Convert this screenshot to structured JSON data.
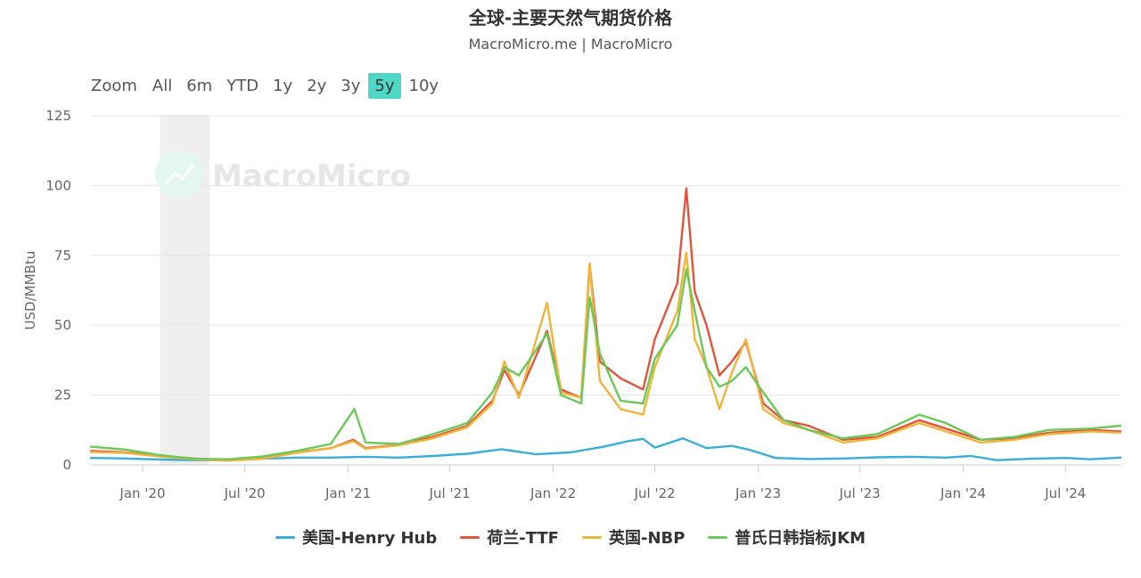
{
  "header": {
    "title": "全球-主要天然气期货价格",
    "subtitle": "MacroMicro.me | MacroMicro"
  },
  "zoom": {
    "label": "Zoom",
    "buttons": [
      "All",
      "6m",
      "YTD",
      "1y",
      "2y",
      "3y",
      "5y",
      "10y"
    ],
    "active": "5y"
  },
  "watermark": {
    "text": "MacroMicro",
    "icon": "chart-line-icon"
  },
  "chart_data": {
    "type": "line",
    "ylabel": "USD/MMBtu",
    "xlabel": "",
    "ylim": [
      0,
      125
    ],
    "yticks": [
      0,
      25,
      50,
      75,
      100,
      125
    ],
    "xlim": [
      "2019-10-01",
      "2024-10-07"
    ],
    "xticks": [
      {
        "date": "2020-01-01",
        "label": "Jan '20"
      },
      {
        "date": "2020-07-01",
        "label": "Jul '20"
      },
      {
        "date": "2021-01-01",
        "label": "Jan '21"
      },
      {
        "date": "2021-07-01",
        "label": "Jul '21"
      },
      {
        "date": "2022-01-01",
        "label": "Jan '22"
      },
      {
        "date": "2022-07-01",
        "label": "Jul '22"
      },
      {
        "date": "2023-01-01",
        "label": "Jan '23"
      },
      {
        "date": "2023-07-01",
        "label": "Jul '23"
      },
      {
        "date": "2024-01-01",
        "label": "Jan '24"
      },
      {
        "date": "2024-07-01",
        "label": "Jul '24"
      }
    ],
    "shaded_periods": [
      {
        "start": "2020-02-01",
        "end": "2020-04-30"
      }
    ],
    "grid": true,
    "legend_position": "bottom",
    "series": [
      {
        "name": "美国-Henry Hub",
        "color": "#3aaed8",
        "points": [
          [
            "2019-10-01",
            2.5
          ],
          [
            "2019-12-01",
            2.3
          ],
          [
            "2020-02-01",
            1.9
          ],
          [
            "2020-04-01",
            1.7
          ],
          [
            "2020-06-01",
            1.7
          ],
          [
            "2020-08-01",
            2.2
          ],
          [
            "2020-10-01",
            2.6
          ],
          [
            "2020-12-01",
            2.6
          ],
          [
            "2021-02-01",
            2.9
          ],
          [
            "2021-04-01",
            2.6
          ],
          [
            "2021-06-01",
            3.2
          ],
          [
            "2021-08-01",
            4.0
          ],
          [
            "2021-10-01",
            5.6
          ],
          [
            "2021-12-01",
            3.8
          ],
          [
            "2022-02-01",
            4.5
          ],
          [
            "2022-04-01",
            6.5
          ],
          [
            "2022-05-15",
            8.5
          ],
          [
            "2022-06-10",
            9.3
          ],
          [
            "2022-07-01",
            6.2
          ],
          [
            "2022-08-20",
            9.5
          ],
          [
            "2022-10-01",
            6.0
          ],
          [
            "2022-11-15",
            6.8
          ],
          [
            "2022-12-15",
            5.5
          ],
          [
            "2023-02-01",
            2.5
          ],
          [
            "2023-04-01",
            2.1
          ],
          [
            "2023-06-01",
            2.3
          ],
          [
            "2023-08-01",
            2.7
          ],
          [
            "2023-10-01",
            2.9
          ],
          [
            "2023-12-01",
            2.6
          ],
          [
            "2024-01-15",
            3.2
          ],
          [
            "2024-03-01",
            1.7
          ],
          [
            "2024-05-01",
            2.2
          ],
          [
            "2024-07-01",
            2.5
          ],
          [
            "2024-08-15",
            2.0
          ],
          [
            "2024-10-07",
            2.6
          ]
        ]
      },
      {
        "name": "荷兰-TTF",
        "color": "#e2553c",
        "points": [
          [
            "2019-10-01",
            5.0
          ],
          [
            "2019-12-01",
            4.5
          ],
          [
            "2020-02-01",
            3.3
          ],
          [
            "2020-04-01",
            2.3
          ],
          [
            "2020-06-01",
            1.8
          ],
          [
            "2020-08-01",
            2.5
          ],
          [
            "2020-10-01",
            4.5
          ],
          [
            "2020-12-01",
            6.0
          ],
          [
            "2021-01-10",
            9.0
          ],
          [
            "2021-02-01",
            6.0
          ],
          [
            "2021-04-01",
            7.2
          ],
          [
            "2021-06-01",
            10.0
          ],
          [
            "2021-08-01",
            14.0
          ],
          [
            "2021-09-15",
            23.0
          ],
          [
            "2021-10-06",
            34.0
          ],
          [
            "2021-11-01",
            25.0
          ],
          [
            "2021-12-21",
            48.0
          ],
          [
            "2022-01-15",
            27.0
          ],
          [
            "2022-02-20",
            24.0
          ],
          [
            "2022-03-07",
            72.0
          ],
          [
            "2022-03-25",
            37.0
          ],
          [
            "2022-05-01",
            31.0
          ],
          [
            "2022-06-10",
            27.0
          ],
          [
            "2022-07-01",
            45.0
          ],
          [
            "2022-08-10",
            65.0
          ],
          [
            "2022-08-26",
            99.0
          ],
          [
            "2022-09-10",
            62.0
          ],
          [
            "2022-10-01",
            50.0
          ],
          [
            "2022-10-24",
            32.0
          ],
          [
            "2022-11-15",
            37.0
          ],
          [
            "2022-12-10",
            44.0
          ],
          [
            "2023-01-10",
            22.0
          ],
          [
            "2023-02-15",
            16.0
          ],
          [
            "2023-04-01",
            14.0
          ],
          [
            "2023-06-01",
            9.0
          ],
          [
            "2023-08-01",
            10.0
          ],
          [
            "2023-10-15",
            16.0
          ],
          [
            "2023-12-01",
            13.0
          ],
          [
            "2024-02-01",
            9.0
          ],
          [
            "2024-04-01",
            9.5
          ],
          [
            "2024-06-01",
            11.5
          ],
          [
            "2024-08-15",
            12.5
          ],
          [
            "2024-10-07",
            12.0
          ]
        ]
      },
      {
        "name": "英国-NBP",
        "color": "#f1b43a",
        "points": [
          [
            "2019-10-01",
            4.6
          ],
          [
            "2019-12-01",
            4.3
          ],
          [
            "2020-02-01",
            3.0
          ],
          [
            "2020-04-01",
            2.0
          ],
          [
            "2020-06-01",
            1.5
          ],
          [
            "2020-08-01",
            2.2
          ],
          [
            "2020-10-01",
            4.3
          ],
          [
            "2020-12-01",
            6.0
          ],
          [
            "2021-01-10",
            8.5
          ],
          [
            "2021-02-01",
            5.8
          ],
          [
            "2021-04-01",
            7.0
          ],
          [
            "2021-06-01",
            9.5
          ],
          [
            "2021-08-01",
            13.5
          ],
          [
            "2021-09-15",
            22.0
          ],
          [
            "2021-10-06",
            37.0
          ],
          [
            "2021-11-01",
            24.0
          ],
          [
            "2021-12-21",
            58.0
          ],
          [
            "2022-01-15",
            26.0
          ],
          [
            "2022-02-20",
            24.0
          ],
          [
            "2022-03-07",
            72.0
          ],
          [
            "2022-03-25",
            30.0
          ],
          [
            "2022-05-01",
            20.0
          ],
          [
            "2022-06-10",
            18.0
          ],
          [
            "2022-07-01",
            35.0
          ],
          [
            "2022-08-10",
            55.0
          ],
          [
            "2022-08-26",
            76.0
          ],
          [
            "2022-09-10",
            45.0
          ],
          [
            "2022-10-01",
            35.0
          ],
          [
            "2022-10-24",
            20.0
          ],
          [
            "2022-11-15",
            33.0
          ],
          [
            "2022-12-10",
            45.0
          ],
          [
            "2023-01-10",
            20.0
          ],
          [
            "2023-02-15",
            15.0
          ],
          [
            "2023-04-01",
            12.5
          ],
          [
            "2023-06-01",
            8.0
          ],
          [
            "2023-08-01",
            9.5
          ],
          [
            "2023-10-15",
            15.0
          ],
          [
            "2023-12-01",
            12.0
          ],
          [
            "2024-02-01",
            8.0
          ],
          [
            "2024-04-01",
            9.0
          ],
          [
            "2024-06-01",
            11.0
          ],
          [
            "2024-08-15",
            12.0
          ],
          [
            "2024-10-07",
            11.5
          ]
        ]
      },
      {
        "name": "普氏日韩指标JKM",
        "color": "#6cc85a",
        "points": [
          [
            "2019-10-01",
            6.5
          ],
          [
            "2019-12-01",
            5.5
          ],
          [
            "2020-02-01",
            3.5
          ],
          [
            "2020-04-01",
            2.2
          ],
          [
            "2020-06-01",
            2.0
          ],
          [
            "2020-08-01",
            3.0
          ],
          [
            "2020-10-01",
            5.0
          ],
          [
            "2020-12-01",
            7.5
          ],
          [
            "2021-01-12",
            20.0
          ],
          [
            "2021-02-01",
            8.0
          ],
          [
            "2021-04-01",
            7.5
          ],
          [
            "2021-06-01",
            11.0
          ],
          [
            "2021-08-01",
            15.0
          ],
          [
            "2021-09-15",
            26.0
          ],
          [
            "2021-10-06",
            35.0
          ],
          [
            "2021-11-01",
            32.0
          ],
          [
            "2021-12-21",
            47.0
          ],
          [
            "2022-01-15",
            25.0
          ],
          [
            "2022-02-20",
            22.0
          ],
          [
            "2022-03-07",
            60.0
          ],
          [
            "2022-03-25",
            40.0
          ],
          [
            "2022-05-01",
            23.0
          ],
          [
            "2022-06-10",
            22.0
          ],
          [
            "2022-07-01",
            38.0
          ],
          [
            "2022-08-10",
            50.0
          ],
          [
            "2022-08-26",
            70.0
          ],
          [
            "2022-09-10",
            55.0
          ],
          [
            "2022-10-01",
            35.0
          ],
          [
            "2022-10-24",
            28.0
          ],
          [
            "2022-11-15",
            30.0
          ],
          [
            "2022-12-10",
            35.0
          ],
          [
            "2023-01-10",
            26.0
          ],
          [
            "2023-02-15",
            16.0
          ],
          [
            "2023-04-01",
            12.5
          ],
          [
            "2023-06-01",
            9.5
          ],
          [
            "2023-08-01",
            11.0
          ],
          [
            "2023-10-15",
            18.0
          ],
          [
            "2023-12-01",
            15.0
          ],
          [
            "2024-02-01",
            9.0
          ],
          [
            "2024-04-01",
            10.0
          ],
          [
            "2024-06-01",
            12.5
          ],
          [
            "2024-08-15",
            13.0
          ],
          [
            "2024-10-07",
            14.0
          ]
        ]
      }
    ]
  }
}
